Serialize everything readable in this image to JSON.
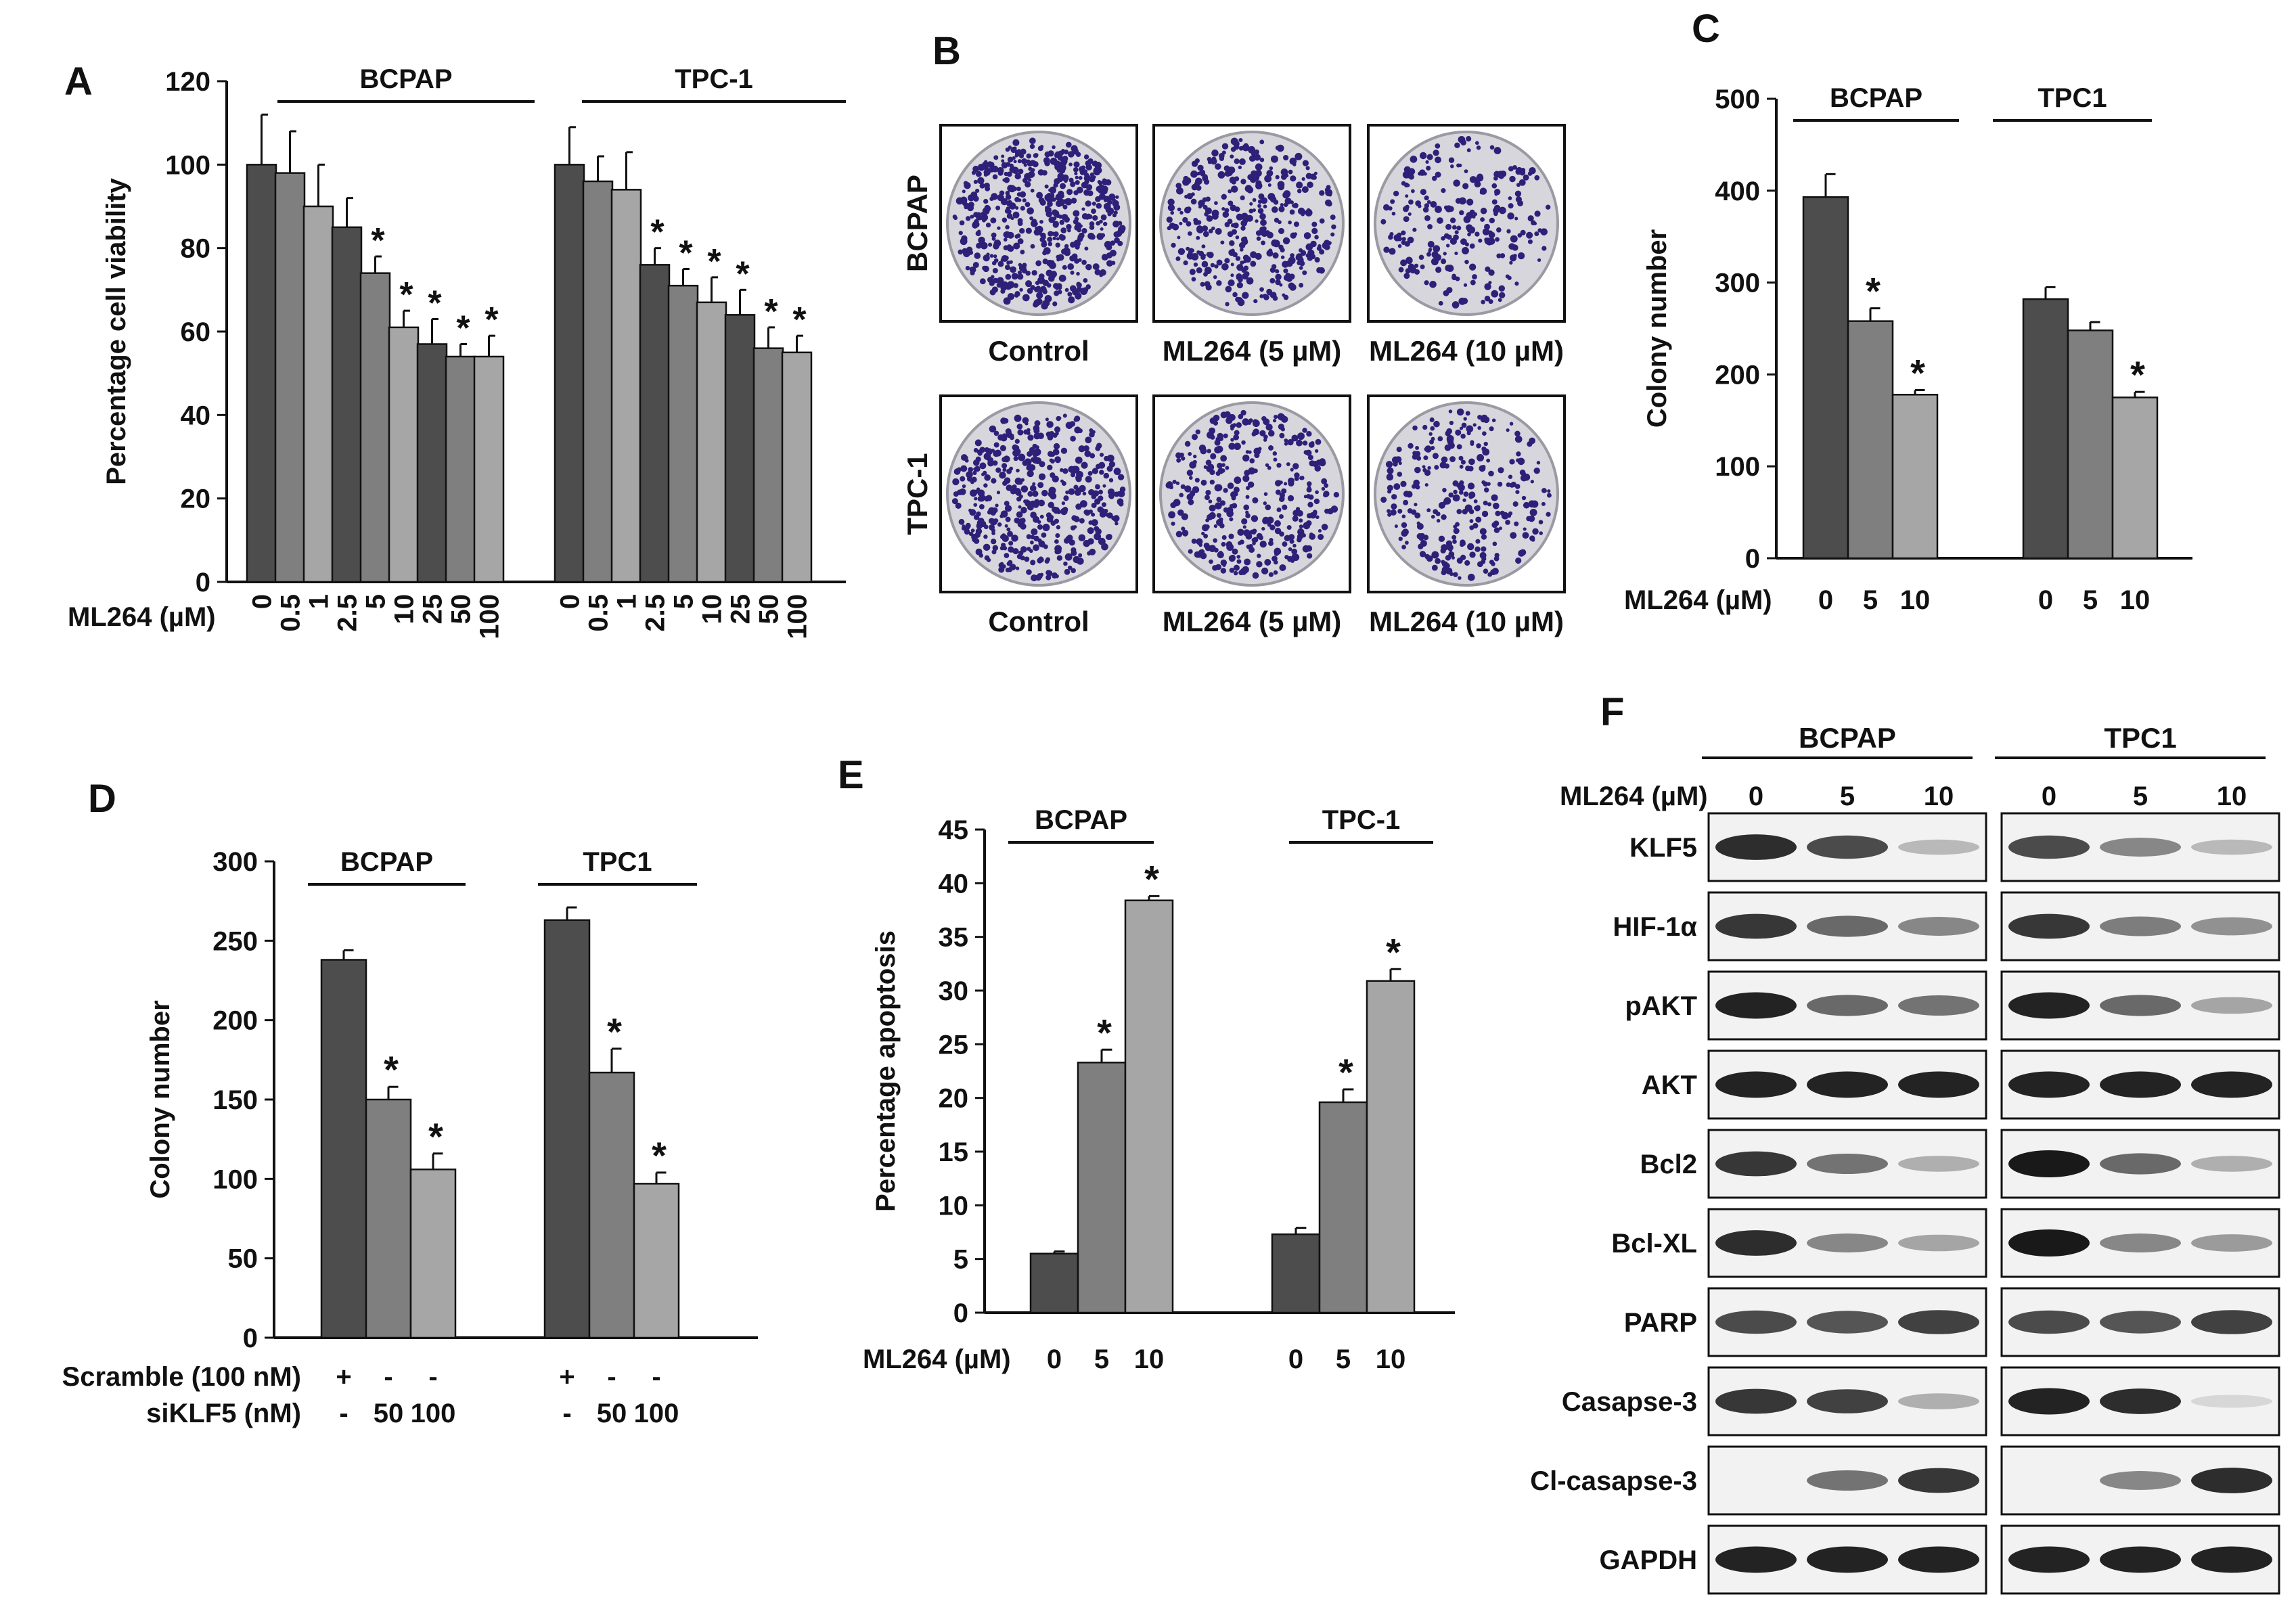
{
  "panel_letters": {
    "a": "A",
    "b": "B",
    "c": "C",
    "d": "D",
    "e": "E",
    "f": "F"
  },
  "colors": {
    "dark": "#4d4d4d",
    "mid": "#7f7f7f",
    "light": "#a6a6a6",
    "axis": "#111111",
    "plate_bg": "#d6d6dc",
    "colony": "#2e1f78"
  },
  "panel_b": {
    "row_labels": [
      "BCPAP",
      "TPC-1"
    ],
    "captions": [
      "Control",
      "ML264 (5 µM)",
      "ML264 (10 µM)"
    ]
  },
  "panel_f": {
    "treatment_label": "ML264 (µM)",
    "groups": [
      "BCPAP",
      "TPC1"
    ],
    "doses": [
      "0",
      "5",
      "10"
    ],
    "proteins": [
      "KLF5",
      "HIF-1α",
      "pAKT",
      "AKT",
      "Bcl2",
      "Bcl-XL",
      "PARP",
      "Casapse-3",
      "Cl-casapse-3",
      "GAPDH"
    ],
    "intensities": [
      [
        [
          0.9,
          0.75,
          0.2
        ],
        [
          0.75,
          0.45,
          0.2
        ]
      ],
      [
        [
          0.85,
          0.6,
          0.45
        ],
        [
          0.85,
          0.5,
          0.4
        ]
      ],
      [
        [
          0.95,
          0.6,
          0.55
        ],
        [
          0.95,
          0.6,
          0.3
        ]
      ],
      [
        [
          0.95,
          0.95,
          0.95
        ],
        [
          0.95,
          0.95,
          0.95
        ]
      ],
      [
        [
          0.85,
          0.55,
          0.25
        ],
        [
          1.0,
          0.6,
          0.25
        ]
      ],
      [
        [
          0.9,
          0.45,
          0.3
        ],
        [
          1.0,
          0.45,
          0.35
        ]
      ],
      [
        [
          0.75,
          0.7,
          0.8
        ],
        [
          0.75,
          0.7,
          0.8
        ]
      ],
      [
        [
          0.85,
          0.8,
          0.25
        ],
        [
          0.95,
          0.9,
          0.05
        ]
      ],
      [
        [
          0.0,
          0.55,
          0.85
        ],
        [
          0.0,
          0.45,
          0.9
        ]
      ],
      [
        [
          0.95,
          0.95,
          0.95
        ],
        [
          0.95,
          0.95,
          0.95
        ]
      ]
    ]
  },
  "chart_data": [
    {
      "id": "A",
      "type": "bar",
      "ylabel": "Percentage cell viability",
      "xlabel_prefix": "ML264 (µM)",
      "ylim": [
        0,
        120
      ],
      "yticks": [
        0,
        20,
        40,
        60,
        80,
        100,
        120
      ],
      "groups": [
        {
          "name": "BCPAP",
          "categories": [
            "0",
            "0.5",
            "1",
            "2.5",
            "5",
            "10",
            "25",
            "50",
            "100"
          ],
          "values": [
            100,
            98,
            90,
            85,
            74,
            61,
            57,
            54,
            54
          ],
          "errors": [
            12,
            10,
            10,
            7,
            4,
            4,
            6,
            3,
            5
          ],
          "sig": [
            false,
            false,
            false,
            false,
            true,
            true,
            true,
            true,
            true
          ]
        },
        {
          "name": "TPC-1",
          "categories": [
            "0",
            "0.5",
            "1",
            "2.5",
            "5",
            "10",
            "25",
            "50",
            "100"
          ],
          "values": [
            100,
            96,
            94,
            76,
            71,
            67,
            64,
            56,
            55
          ],
          "errors": [
            9,
            6,
            9,
            4,
            4,
            6,
            6,
            5,
            4
          ],
          "sig": [
            false,
            false,
            false,
            true,
            true,
            true,
            true,
            true,
            true
          ]
        }
      ]
    },
    {
      "id": "C",
      "type": "bar",
      "ylabel": "Colony number",
      "xlabel_prefix": "ML264 (µM)",
      "ylim": [
        0,
        500
      ],
      "yticks": [
        0,
        100,
        200,
        300,
        400,
        500
      ],
      "groups": [
        {
          "name": "BCPAP",
          "categories": [
            "0",
            "5",
            "10"
          ],
          "values": [
            393,
            258,
            178
          ],
          "errors": [
            25,
            14,
            5
          ],
          "sig": [
            false,
            true,
            true
          ]
        },
        {
          "name": "TPC1",
          "categories": [
            "0",
            "5",
            "10"
          ],
          "values": [
            282,
            248,
            175
          ],
          "errors": [
            13,
            9,
            6
          ],
          "sig": [
            false,
            false,
            true
          ]
        }
      ]
    },
    {
      "id": "D",
      "type": "bar",
      "ylabel": "Colony number",
      "row_labels": [
        "Scramble (100 nM)",
        "siKLF5 (nM)"
      ],
      "ylim": [
        0,
        300
      ],
      "yticks": [
        0,
        50,
        100,
        150,
        200,
        250,
        300
      ],
      "groups": [
        {
          "name": "BCPAP",
          "row1": [
            "+",
            "-",
            "-"
          ],
          "row2": [
            "-",
            "50",
            "100"
          ],
          "values": [
            238,
            150,
            106
          ],
          "errors": [
            6,
            8,
            10
          ],
          "sig": [
            false,
            true,
            true
          ]
        },
        {
          "name": "TPC1",
          "row1": [
            "+",
            "-",
            "-"
          ],
          "row2": [
            "-",
            "50",
            "100"
          ],
          "values": [
            263,
            167,
            97
          ],
          "errors": [
            8,
            15,
            7
          ],
          "sig": [
            false,
            true,
            true
          ]
        }
      ]
    },
    {
      "id": "E",
      "type": "bar",
      "ylabel": "Percentage apoptosis",
      "xlabel_prefix": "ML264 (µM)",
      "ylim": [
        0,
        45
      ],
      "yticks": [
        0,
        5,
        10,
        15,
        20,
        25,
        30,
        35,
        40,
        45
      ],
      "groups": [
        {
          "name": "BCPAP",
          "categories": [
            "0",
            "5",
            "10"
          ],
          "values": [
            5.5,
            23.3,
            38.4
          ],
          "errors": [
            0.2,
            1.2,
            0.4
          ],
          "sig": [
            false,
            true,
            true
          ]
        },
        {
          "name": "TPC-1",
          "categories": [
            "0",
            "5",
            "10"
          ],
          "values": [
            7.3,
            19.6,
            30.9
          ],
          "errors": [
            0.6,
            1.2,
            1.1
          ],
          "sig": [
            false,
            true,
            true
          ]
        }
      ]
    }
  ]
}
